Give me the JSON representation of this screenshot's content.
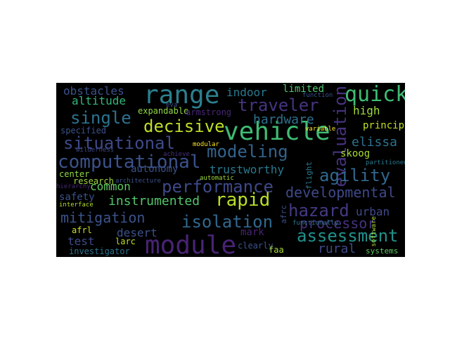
{
  "background_color": "#000000",
  "words": [
    {
      "text": "range",
      "color": "#2d7f8e"
    },
    {
      "text": "vehicle",
      "color": "#3fbc73"
    },
    {
      "text": "module",
      "color": "#482374"
    },
    {
      "text": "traveler",
      "color": "#463480"
    },
    {
      "text": "quick",
      "color": "#3fbc73"
    },
    {
      "text": "evaluation",
      "color": "#46327e"
    },
    {
      "text": "decisive",
      "color": "#bddf26"
    },
    {
      "text": "single",
      "color": "#2c728e"
    },
    {
      "text": "obstacles",
      "color": "#3b528b"
    },
    {
      "text": "indoor",
      "color": "#2a788e"
    },
    {
      "text": "limited",
      "color": "#52c569"
    },
    {
      "text": "altitude",
      "color": "#34b679"
    },
    {
      "text": "high",
      "color": "#9fda3a"
    },
    {
      "text": "hardware",
      "color": "#2d708e"
    },
    {
      "text": "situational",
      "color": "#3e4a89"
    },
    {
      "text": "modeling",
      "color": "#33638d"
    },
    {
      "text": "elissa",
      "color": "#2c728e"
    },
    {
      "text": "skoog",
      "color": "#a8db34"
    },
    {
      "text": "principle",
      "color": "#bddf26"
    },
    {
      "text": "computational",
      "color": "#3b528b"
    },
    {
      "text": "agility",
      "color": "#31688e"
    },
    {
      "text": "performance",
      "color": "#3e4989"
    },
    {
      "text": "trustworthy",
      "color": "#2a788e"
    },
    {
      "text": "autonomy",
      "color": "#3b528b"
    },
    {
      "text": "common",
      "color": "#5ec962"
    },
    {
      "text": "developmental",
      "color": "#3e4989"
    },
    {
      "text": "rapid",
      "color": "#b8de29"
    },
    {
      "text": "instrumented",
      "color": "#52c569"
    },
    {
      "text": "safety",
      "color": "#3b528b"
    },
    {
      "text": "hazard",
      "color": "#443983"
    },
    {
      "text": "urban",
      "color": "#3e4a89"
    },
    {
      "text": "mitigation",
      "color": "#3b528b"
    },
    {
      "text": "isolation",
      "color": "#31688e"
    },
    {
      "text": "processor",
      "color": "#46327e"
    },
    {
      "text": "desert",
      "color": "#3b528b"
    },
    {
      "text": "assessment",
      "color": "#21918c"
    },
    {
      "text": "mark",
      "color": "#482374"
    },
    {
      "text": "rural",
      "color": "#3e4a89"
    },
    {
      "text": "test",
      "color": "#3e4a89"
    },
    {
      "text": "larc",
      "color": "#bddf26"
    },
    {
      "text": "afrl",
      "color": "#cae11f"
    },
    {
      "text": "investigator",
      "color": "#2c728e"
    },
    {
      "text": "clearly",
      "color": "#3b528b"
    },
    {
      "text": "faa",
      "color": "#a8db34"
    },
    {
      "text": "systems",
      "color": "#5ec962"
    },
    {
      "text": "research",
      "color": "#9fda3a"
    },
    {
      "text": "center",
      "color": "#8fd744"
    },
    {
      "text": "expandable",
      "color": "#8fd744"
    },
    {
      "text": "armstrong",
      "color": "#482878"
    },
    {
      "text": "specified",
      "color": "#3b528b"
    },
    {
      "text": "eva",
      "color": "#3b528b"
    },
    {
      "text": "variable",
      "color": "#fde725"
    },
    {
      "text": "wilderness",
      "color": "#3e4989"
    },
    {
      "text": "achieve",
      "color": "#46337f"
    },
    {
      "text": "modular",
      "color": "#fde725"
    },
    {
      "text": "partitioned",
      "color": "#2a788e"
    },
    {
      "text": "automatic",
      "color": "#9fda3a"
    },
    {
      "text": "architecture",
      "color": "#3b528b"
    },
    {
      "text": "hierarchy",
      "color": "#482878"
    },
    {
      "text": "interface",
      "color": "#b5de2b"
    },
    {
      "text": "functionally",
      "color": "#2a788e"
    },
    {
      "text": "flight",
      "color": "#2a788e"
    },
    {
      "text": "afrc",
      "color": "#3b528b"
    },
    {
      "text": "software",
      "color": "#a8db34"
    },
    {
      "text": "function",
      "color": "#3b528b"
    }
  ]
}
